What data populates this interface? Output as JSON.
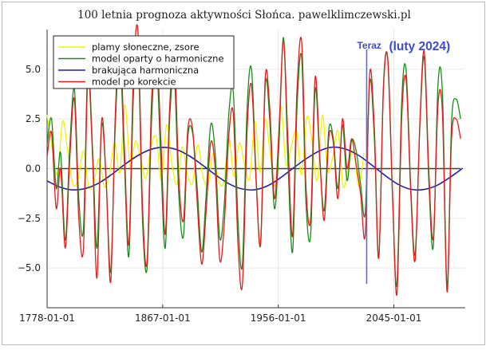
{
  "chart_data": {
    "type": "line",
    "title": "100 letnia prognoza aktywności Słońca. pawelklimczewski.pl",
    "xlabel": "",
    "ylabel": "",
    "x_axis": {
      "type": "date",
      "range": [
        "1778-01-01",
        "2099-12-31"
      ],
      "ticks": [
        "1778-01-01",
        "1867-01-01",
        "1956-01-01",
        "2045-01-01"
      ]
    },
    "y_axis": {
      "range": [
        -7.0,
        7.0
      ],
      "ticks": [
        -5.0,
        -2.5,
        0.0,
        2.5,
        5.0
      ],
      "tick_labels": [
        "−5.0",
        "−2.5",
        "0.0",
        "2.5",
        "5.0"
      ]
    },
    "grid": true,
    "legend_position": "top-left",
    "zero_line": 0,
    "series": [
      {
        "name": "plamy słoneczne, zsore",
        "color": "#f2f200",
        "x": [
          "1778-01-01",
          "1782-01-01",
          "1786-01-01",
          "1790-01-01",
          "1794-01-01",
          "1798-01-01",
          "1802-01-01",
          "1806-01-01",
          "1810-01-01",
          "1814-01-01",
          "1818-01-01",
          "1822-01-01",
          "1826-01-01",
          "1830-01-01",
          "1834-01-01",
          "1838-01-01",
          "1842-01-01",
          "1846-01-01",
          "1850-01-01",
          "1854-01-01",
          "1858-01-01",
          "1862-01-01",
          "1866-01-01",
          "1870-01-01",
          "1874-01-01",
          "1878-01-01",
          "1882-01-01",
          "1886-01-01",
          "1890-01-01",
          "1894-01-01",
          "1898-01-01",
          "1902-01-01",
          "1906-01-01",
          "1910-01-01",
          "1914-01-01",
          "1918-01-01",
          "1922-01-01",
          "1926-01-01",
          "1930-01-01",
          "1934-01-01",
          "1938-01-01",
          "1942-01-01",
          "1946-01-01",
          "1950-01-01",
          "1954-01-01",
          "1958-01-01",
          "1962-01-01",
          "1966-01-01",
          "1970-01-01",
          "1974-01-01",
          "1978-01-01",
          "1982-01-01",
          "1986-01-01",
          "1990-01-01",
          "1994-01-01",
          "1998-01-01",
          "2002-01-01",
          "2006-01-01",
          "2010-01-01",
          "2014-01-01",
          "2018-01-01",
          "2022-01-01"
        ],
        "values": [
          2.7,
          1.0,
          -0.3,
          2.4,
          0.8,
          -0.8,
          -0.5,
          0.9,
          -0.9,
          -0.7,
          0.5,
          -0.9,
          -0.3,
          1.3,
          -0.2,
          3.2,
          0.1,
          1.4,
          0.5,
          -0.5,
          1.1,
          1.6,
          -0.6,
          2.2,
          0.3,
          -0.8,
          1.1,
          -0.3,
          -0.7,
          1.2,
          -0.4,
          -0.8,
          0.8,
          -0.6,
          -0.7,
          1.5,
          -0.4,
          1.3,
          0.2,
          -0.5,
          2.4,
          -0.2,
          2.5,
          0.6,
          -0.8,
          3.1,
          0.2,
          1.1,
          1.9,
          -0.3,
          2.6,
          1.4,
          -0.6,
          2.7,
          -0.1,
          0.6,
          1.9,
          -0.9,
          0.1,
          0.9,
          -0.9,
          0.8
        ]
      },
      {
        "name": "model oparty o harmoniczne",
        "color": "#1a8c1a",
        "x": [
          "1778-01-01",
          "1781-06-01",
          "1785-01-01",
          "1788-06-01",
          "1792-01-01",
          "1795-06-01",
          "1799-01-01",
          "1802-06-01",
          "1806-01-01",
          "1809-06-01",
          "1813-01-01",
          "1816-06-01",
          "1820-01-01",
          "1823-06-01",
          "1827-01-01",
          "1830-06-01",
          "1834-01-01",
          "1837-06-01",
          "1841-01-01",
          "1844-06-01",
          "1848-01-01",
          "1851-06-01",
          "1855-01-01",
          "1858-06-01",
          "1862-01-01",
          "1865-06-01",
          "1869-01-01",
          "1872-06-01",
          "1876-01-01",
          "1879-06-01",
          "1883-01-01",
          "1886-06-01",
          "1890-01-01",
          "1893-06-01",
          "1897-01-01",
          "1900-06-01",
          "1904-01-01",
          "1907-06-01",
          "1911-01-01",
          "1914-06-01",
          "1918-01-01",
          "1921-06-01",
          "1925-01-01",
          "1928-06-01",
          "1932-01-01",
          "1935-06-01",
          "1939-01-01",
          "1942-06-01",
          "1946-01-01",
          "1949-06-01",
          "1953-01-01",
          "1956-06-01",
          "1960-01-01",
          "1963-06-01",
          "1967-01-01",
          "1970-06-01",
          "1974-01-01",
          "1977-06-01",
          "1981-01-01",
          "1984-06-01",
          "1988-01-01",
          "1991-06-01",
          "1995-01-01",
          "1998-06-01",
          "2002-01-01",
          "2005-06-01",
          "2009-01-01",
          "2012-06-01",
          "2016-01-01",
          "2019-06-01",
          "2023-01-01",
          "2026-06-01",
          "2030-01-01",
          "2033-06-01",
          "2037-01-01",
          "2040-06-01",
          "2044-01-01",
          "2047-06-01",
          "2051-01-01",
          "2054-06-01",
          "2058-01-01",
          "2061-06-01",
          "2065-01-01",
          "2068-06-01",
          "2072-01-01",
          "2075-06-01",
          "2079-01-01",
          "2082-06-01",
          "2086-01-01",
          "2089-06-01",
          "2093-01-01",
          "2096-06-01"
        ],
        "values": [
          1.2,
          2.5,
          -1.0,
          0.8,
          -3.6,
          1.0,
          4.0,
          -1.5,
          -3.0,
          5.2,
          1.0,
          -4.0,
          2.2,
          -0.5,
          -5.2,
          2.0,
          5.8,
          0.5,
          -4.4,
          3.6,
          6.2,
          -2.5,
          -5.0,
          2.4,
          5.7,
          0.6,
          -4.0,
          2.5,
          4.6,
          -1.3,
          -3.4,
          1.6,
          1.8,
          -0.8,
          -4.2,
          -1.4,
          2.2,
          0.8,
          -3.5,
          -1.8,
          2.8,
          3.8,
          -2.6,
          -4.8,
          3.0,
          5.0,
          -0.5,
          -3.8,
          4.2,
          2.5,
          -2.0,
          1.0,
          6.6,
          0.5,
          -4.2,
          3.0,
          5.6,
          -1.8,
          -3.3,
          4.0,
          0.4,
          -2.1,
          2.0,
          1.5,
          -1.0,
          2.2,
          -0.6,
          1.4,
          0.9,
          -0.8,
          -2.2,
          4.4,
          1.5,
          -4.5,
          4.2,
          5.4,
          -1.5,
          -5.8,
          3.3,
          5.0,
          -0.9,
          -4.3,
          2.0,
          5.6,
          -0.7,
          -3.9,
          4.2,
          3.8,
          -6.0,
          2.3,
          3.5,
          2.5
        ]
      },
      {
        "name": "brakująca harmoniczna",
        "color": "#1f1fb5",
        "x": [
          "1778-01-01",
          "1788-01-01",
          "1798-01-01",
          "1808-01-01",
          "1818-01-01",
          "1828-01-01",
          "1838-01-01",
          "1848-01-01",
          "1858-01-01",
          "1868-01-01",
          "1878-01-01",
          "1888-01-01",
          "1898-01-01",
          "1908-01-01",
          "1918-01-01",
          "1928-01-01",
          "1938-01-01",
          "1948-01-01",
          "1958-01-01",
          "1968-01-01",
          "1978-01-01",
          "1988-01-01",
          "1998-01-01",
          "2008-01-01",
          "2018-01-01",
          "2028-01-01",
          "2038-01-01",
          "2048-01-01",
          "2058-01-01",
          "2068-01-01",
          "2078-01-01",
          "2088-01-01",
          "2098-01-01"
        ],
        "values": [
          -0.62,
          -0.93,
          -1.07,
          -0.99,
          -0.72,
          -0.28,
          0.22,
          0.66,
          0.97,
          1.07,
          0.95,
          0.62,
          0.16,
          -0.33,
          -0.76,
          -1.02,
          -1.06,
          -0.86,
          -0.45,
          0.05,
          0.52,
          0.9,
          1.08,
          0.98,
          0.66,
          0.18,
          -0.33,
          -0.78,
          -1.04,
          -1.05,
          -0.85,
          -0.45,
          0.02
        ]
      },
      {
        "name": "model po korekcie",
        "color": "#e01e1e",
        "x": [
          "1778-01-01",
          "1781-06-01",
          "1785-01-01",
          "1788-06-01",
          "1792-01-01",
          "1795-06-01",
          "1799-01-01",
          "1802-06-01",
          "1806-01-01",
          "1809-06-01",
          "1813-01-01",
          "1816-06-01",
          "1820-01-01",
          "1823-06-01",
          "1827-01-01",
          "1830-06-01",
          "1834-01-01",
          "1837-06-01",
          "1841-01-01",
          "1844-06-01",
          "1848-01-01",
          "1851-06-01",
          "1855-01-01",
          "1858-06-01",
          "1862-01-01",
          "1865-06-01",
          "1869-01-01",
          "1872-06-01",
          "1876-01-01",
          "1879-06-01",
          "1883-01-01",
          "1886-06-01",
          "1890-01-01",
          "1893-06-01",
          "1897-01-01",
          "1900-06-01",
          "1904-01-01",
          "1907-06-01",
          "1911-01-01",
          "1914-06-01",
          "1918-01-01",
          "1921-06-01",
          "1925-01-01",
          "1928-06-01",
          "1932-01-01",
          "1935-06-01",
          "1939-01-01",
          "1942-06-01",
          "1946-01-01",
          "1949-06-01",
          "1953-01-01",
          "1956-06-01",
          "1960-01-01",
          "1963-06-01",
          "1967-01-01",
          "1970-06-01",
          "1974-01-01",
          "1977-06-01",
          "1981-01-01",
          "1984-06-01",
          "1988-01-01",
          "1991-06-01",
          "1995-01-01",
          "1998-06-01",
          "2002-01-01",
          "2005-06-01",
          "2009-01-01",
          "2012-06-01",
          "2016-01-01",
          "2019-06-01",
          "2023-01-01",
          "2026-06-01",
          "2030-01-01",
          "2033-06-01",
          "2037-01-01",
          "2040-06-01",
          "2044-01-01",
          "2047-06-01",
          "2051-01-01",
          "2054-06-01",
          "2058-01-01",
          "2061-06-01",
          "2065-01-01",
          "2068-06-01",
          "2072-01-01",
          "2075-06-01",
          "2079-01-01",
          "2082-06-01",
          "2086-01-01",
          "2089-06-01",
          "2093-01-01",
          "2096-06-01"
        ],
        "values": [
          0.6,
          1.8,
          -2.0,
          0.0,
          -4.0,
          0.4,
          3.5,
          -2.5,
          -4.0,
          4.6,
          0.6,
          -5.5,
          2.4,
          -0.5,
          -5.7,
          2.5,
          6.6,
          1.2,
          -3.8,
          4.6,
          6.9,
          -1.8,
          -4.7,
          3.4,
          6.4,
          1.7,
          -3.3,
          3.1,
          5.7,
          -0.4,
          -2.6,
          2.0,
          2.0,
          -1.5,
          -4.8,
          -2.2,
          1.3,
          0.0,
          -4.6,
          -2.8,
          1.7,
          2.7,
          -3.8,
          -5.8,
          1.9,
          4.2,
          -0.7,
          -3.7,
          4.6,
          3.1,
          -1.5,
          1.7,
          6.4,
          1.5,
          -3.4,
          3.9,
          6.4,
          -1.0,
          -2.5,
          4.6,
          0.6,
          -2.6,
          1.6,
          1.3,
          -1.5,
          2.5,
          0.0,
          1.5,
          0.2,
          -1.3,
          -3.3,
          4.8,
          2.0,
          -4.5,
          4.0,
          5.5,
          -1.3,
          -6.3,
          2.5,
          4.5,
          -1.2,
          -4.6,
          2.2,
          5.9,
          -0.2,
          -3.5,
          3.2,
          2.8,
          -6.2,
          1.5,
          2.5,
          1.5
        ]
      }
    ],
    "annotations": [
      {
        "text": "Teraz",
        "color": "#3b4bd6",
        "x": "2024-02-01"
      },
      {
        "text": "(luty 2024)",
        "color": "#3b4bd6"
      }
    ],
    "vertical_line": {
      "x": "2024-02-01",
      "color": "#5a6ae0",
      "y_range": [
        -5.8,
        6.0
      ]
    }
  }
}
